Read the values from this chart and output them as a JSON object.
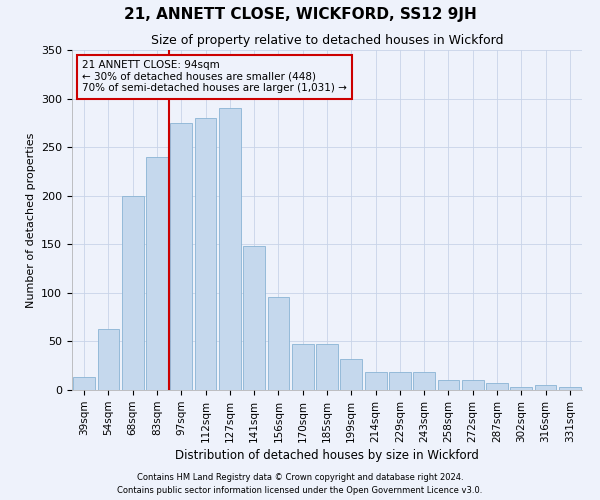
{
  "title": "21, ANNETT CLOSE, WICKFORD, SS12 9JH",
  "subtitle": "Size of property relative to detached houses in Wickford",
  "xlabel": "Distribution of detached houses by size in Wickford",
  "ylabel": "Number of detached properties",
  "footer_line1": "Contains HM Land Registry data © Crown copyright and database right 2024.",
  "footer_line2": "Contains public sector information licensed under the Open Government Licence v3.0.",
  "categories": [
    "39sqm",
    "54sqm",
    "68sqm",
    "83sqm",
    "97sqm",
    "112sqm",
    "127sqm",
    "141sqm",
    "156sqm",
    "170sqm",
    "185sqm",
    "199sqm",
    "214sqm",
    "229sqm",
    "243sqm",
    "258sqm",
    "272sqm",
    "287sqm",
    "302sqm",
    "316sqm",
    "331sqm"
  ],
  "values": [
    13,
    63,
    200,
    240,
    275,
    280,
    290,
    148,
    96,
    47,
    47,
    32,
    19,
    19,
    19,
    10,
    10,
    7,
    3,
    5,
    3
  ],
  "bar_color": "#c5d8ed",
  "bar_edge_color": "#8ab4d4",
  "grid_color": "#c8d4e8",
  "annotation_box_color": "#cc0000",
  "vline_color": "#cc0000",
  "vline_x": 3.5,
  "annotation_line1": "21 ANNETT CLOSE: 94sqm",
  "annotation_line2": "← 30% of detached houses are smaller (448)",
  "annotation_line3": "70% of semi-detached houses are larger (1,031) →",
  "ylim": [
    0,
    350
  ],
  "yticks": [
    0,
    50,
    100,
    150,
    200,
    250,
    300,
    350
  ],
  "background_color": "#eef2fb"
}
